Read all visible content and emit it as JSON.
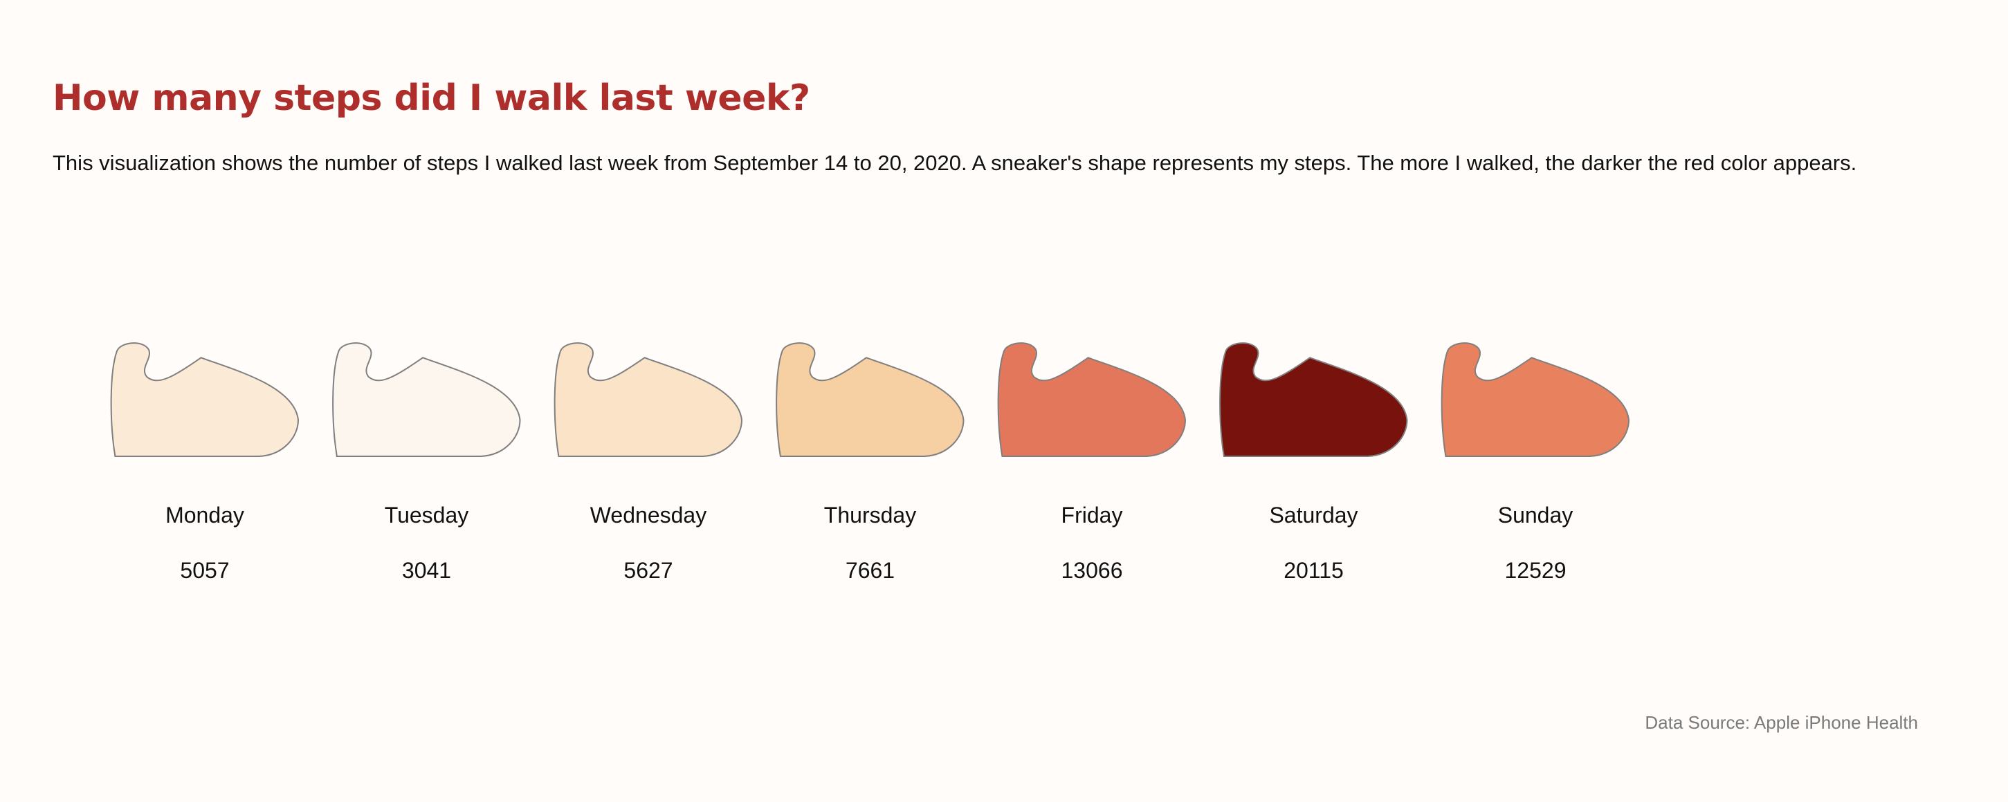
{
  "title": "How many steps did I walk last week?",
  "description": "This visualization shows the number of steps I walked last week from September 14 to 20, 2020. A sneaker's shape represents my steps. The more I walked, the darker the red color appears.",
  "source": "Data Source: Apple iPhone Health",
  "colors": {
    "title": "#ad2e2a",
    "outline": "#7f7f7f",
    "background": "#fffcfa"
  },
  "chart_data": {
    "type": "pictogram",
    "icon": "sneaker-icon",
    "categories": [
      "Monday",
      "Tuesday",
      "Wednesday",
      "Thursday",
      "Friday",
      "Saturday",
      "Sunday"
    ],
    "values": [
      5057,
      3041,
      5627,
      7661,
      13066,
      20115,
      12529
    ],
    "fills": [
      "#fbead6",
      "#fdf6ee",
      "#fae3c7",
      "#f6d0a3",
      "#e3775b",
      "#78120d",
      "#e8825e"
    ],
    "color_scale": "sequential light cream to dark red"
  }
}
